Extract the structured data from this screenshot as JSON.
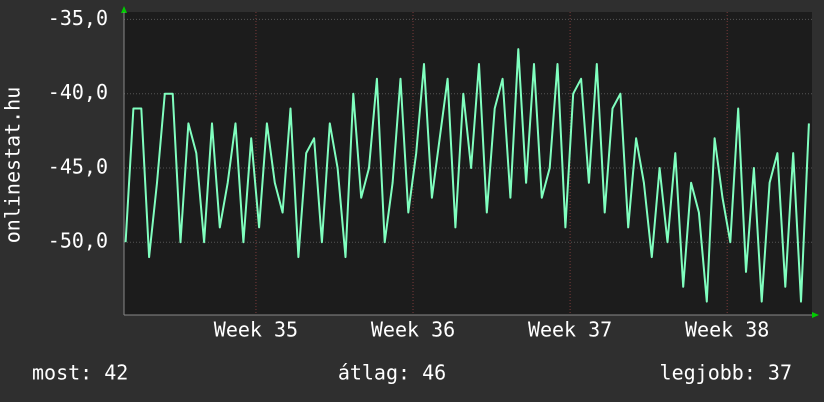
{
  "chart_data": {
    "type": "line",
    "y_label": "onlinestat.hu",
    "x": [
      34.17,
      34.22,
      34.27,
      34.32,
      34.37,
      34.42,
      34.47,
      34.52,
      34.57,
      34.62,
      34.67,
      34.72,
      34.77,
      34.82,
      34.87,
      34.92,
      34.97,
      35.02,
      35.07,
      35.12,
      35.17,
      35.22,
      35.27,
      35.32,
      35.37,
      35.42,
      35.47,
      35.52,
      35.57,
      35.62,
      35.67,
      35.72,
      35.77,
      35.82,
      35.87,
      35.92,
      35.97,
      36.02,
      36.07,
      36.12,
      36.17,
      36.22,
      36.27,
      36.32,
      36.37,
      36.42,
      36.47,
      36.52,
      36.57,
      36.62,
      36.67,
      36.72,
      36.77,
      36.82,
      36.87,
      36.92,
      36.97,
      37.02,
      37.07,
      37.12,
      37.17,
      37.22,
      37.27,
      37.32,
      37.37,
      37.42,
      37.47,
      37.52,
      37.57,
      37.62,
      37.67,
      37.72,
      37.77,
      37.82,
      37.87,
      37.92,
      37.97,
      38.02,
      38.07,
      38.12,
      38.17,
      38.22,
      38.27,
      38.32,
      38.37,
      38.42,
      38.47,
      38.52
    ],
    "series": [
      {
        "color": "#80ffbf",
        "values": [
          -50,
          -41,
          -41,
          -51,
          -46,
          -40,
          -40,
          -50,
          -42,
          -44,
          -50,
          -42,
          -49,
          -46,
          -42,
          -50,
          -43,
          -49,
          -42,
          -46,
          -48,
          -41,
          -51,
          -44,
          -43,
          -50,
          -42,
          -45,
          -51,
          -40,
          -47,
          -45,
          -39,
          -50,
          -46,
          -39,
          -48,
          -44,
          -38,
          -47,
          -43,
          -39,
          -49,
          -40,
          -45,
          -38,
          -48,
          -41,
          -39,
          -47,
          -37,
          -46,
          -38,
          -47,
          -45,
          -38,
          -49,
          -40,
          -39,
          -46,
          -38,
          -48,
          -41,
          -40,
          -49,
          -43,
          -46,
          -51,
          -45,
          -50,
          -44,
          -53,
          -46,
          -48,
          -54,
          -43,
          -47,
          -50,
          -41,
          -52,
          -45,
          -54,
          -46,
          -44,
          -53,
          -44,
          -54,
          -42
        ]
      }
    ],
    "xlim": [
      34.16,
      38.54
    ],
    "xticks": [
      {
        "value": 35,
        "label": "Week 35"
      },
      {
        "value": 36,
        "label": "Week 36"
      },
      {
        "value": 37,
        "label": "Week 37"
      },
      {
        "value": 38,
        "label": "Week 38"
      }
    ],
    "ylim": [
      -54.9,
      -34.5
    ],
    "yticks": [
      {
        "value": -50,
        "label": "-50,0"
      },
      {
        "value": -45,
        "label": "-45,0"
      },
      {
        "value": -40,
        "label": "-40,0"
      },
      {
        "value": -35,
        "label": "-35,0"
      }
    ],
    "grid": true
  },
  "footer": {
    "current": "most: 42",
    "average": "átlag: 46",
    "best": "legjobb: 37"
  }
}
